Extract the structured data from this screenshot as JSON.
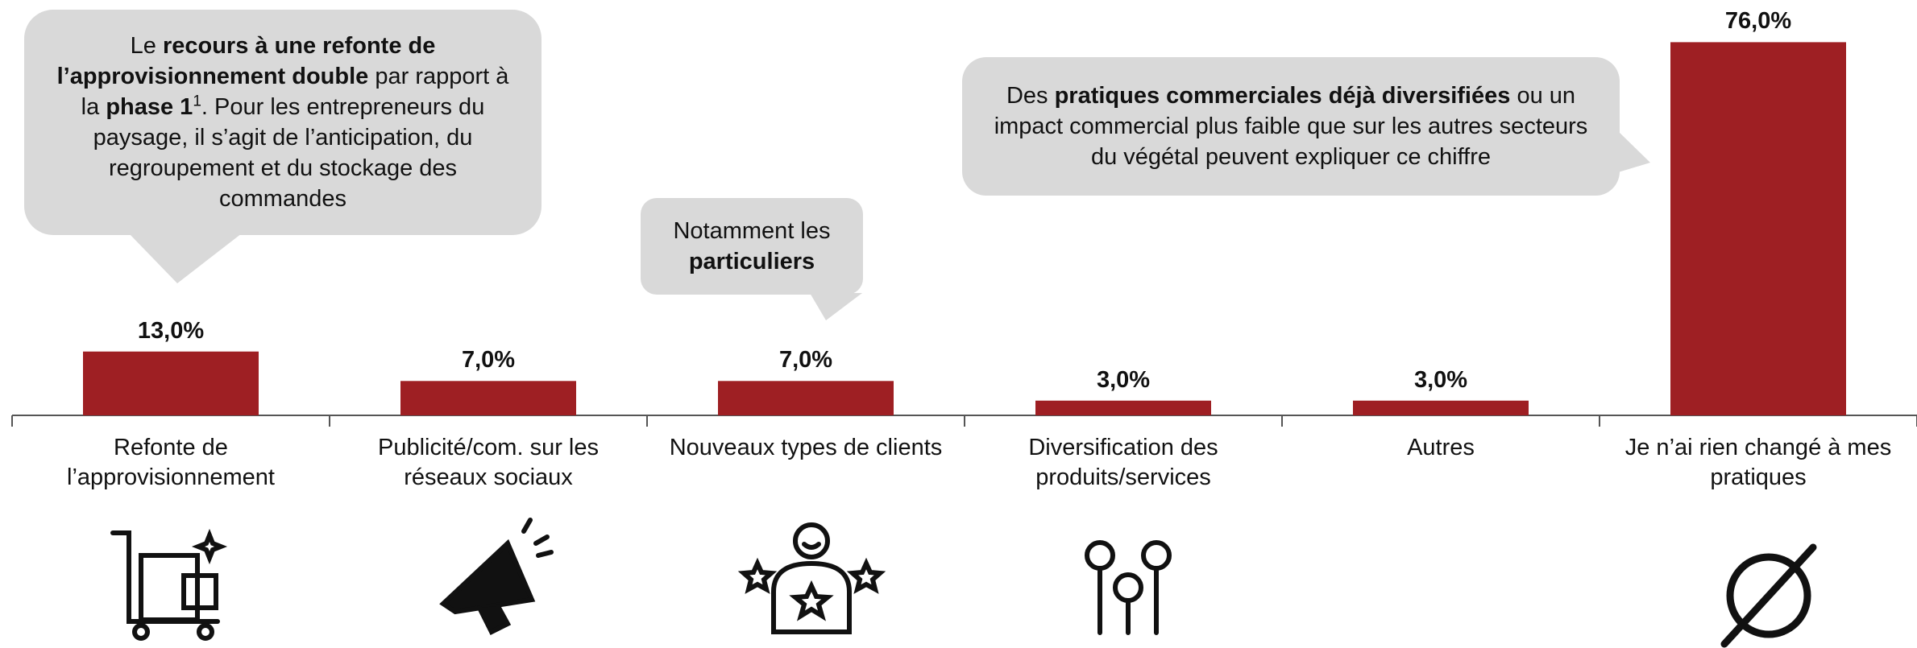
{
  "chart_data": {
    "type": "bar",
    "color": "#9e1f23",
    "categories": [
      "Refonte de l’approvisionnement",
      "Publicité/com. sur les réseaux sociaux",
      "Nouveaux types de clients",
      "Diversification des produits/services",
      "Autres",
      "Je n’ai rien changé à mes pratiques"
    ],
    "values": [
      13,
      7,
      7,
      3,
      3,
      76
    ],
    "value_labels": [
      "13,0%",
      "7,0%",
      "7,0%",
      "3,0%",
      "3,0%",
      "76,0%"
    ],
    "annotations": [
      {
        "runs": [
          {
            "text": "Le ",
            "bold": false
          },
          {
            "text": "recours à une refonte de l’approvisionnement double",
            "bold": true
          },
          {
            "text": " par rapport à la ",
            "bold": false
          },
          {
            "text": "phase 1",
            "bold": true
          },
          {
            "text": "1",
            "sup": true
          },
          {
            "text": ". Pour les entrepreneurs du paysage, il s’agit de l’anticipation, du regroupement et du stockage des commandes",
            "bold": false
          }
        ]
      },
      {
        "runs": [
          {
            "text": "Notamment les ",
            "bold": false
          },
          {
            "text": "particuliers",
            "bold": true
          }
        ]
      },
      {
        "runs": [
          {
            "text": "Des ",
            "bold": false
          },
          {
            "text": "pratiques commerciales déjà diversifiées",
            "bold": true
          },
          {
            "text": " ou un impact commercial plus faible que sur les autres secteurs du végétal peuvent expliquer ce chiffre",
            "bold": false
          }
        ]
      }
    ]
  }
}
